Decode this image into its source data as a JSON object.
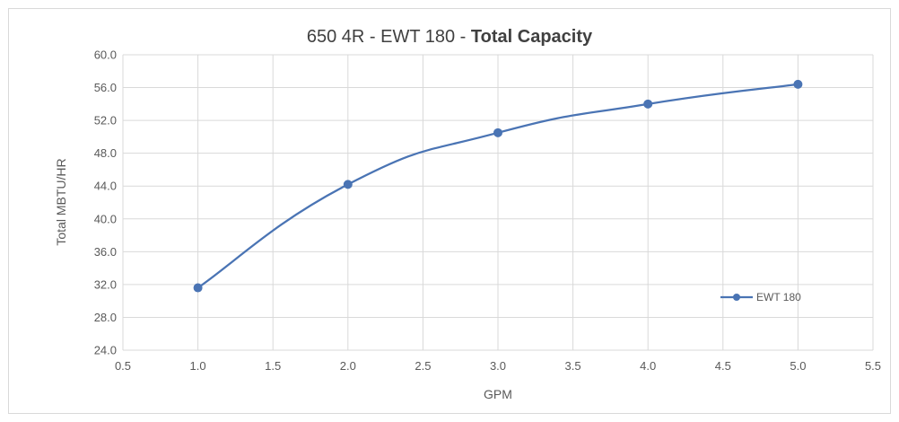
{
  "chart_data": {
    "type": "line",
    "title": {
      "prefix": "650 4R - EWT 180 - ",
      "emphasis": "Total Capacity"
    },
    "xlabel": "GPM",
    "ylabel": "Total MBTU/HR",
    "xlim": [
      0.5,
      5.5
    ],
    "ylim": [
      24.0,
      60.0
    ],
    "x_ticks": [
      "0.5",
      "1.0",
      "1.5",
      "2.0",
      "2.5",
      "3.0",
      "3.5",
      "4.0",
      "4.5",
      "5.0",
      "5.5"
    ],
    "y_ticks": [
      "24.0",
      "28.0",
      "32.0",
      "36.0",
      "40.0",
      "44.0",
      "48.0",
      "52.0",
      "56.0",
      "60.0"
    ],
    "grid": true,
    "smooth": true,
    "legend_position": "right",
    "series": [
      {
        "name": "EWT 180",
        "color": "#4a74b4",
        "x": [
          1.0,
          2.0,
          3.0,
          4.0,
          5.0
        ],
        "y": [
          31.6,
          44.2,
          50.5,
          54.0,
          56.4
        ]
      }
    ]
  }
}
